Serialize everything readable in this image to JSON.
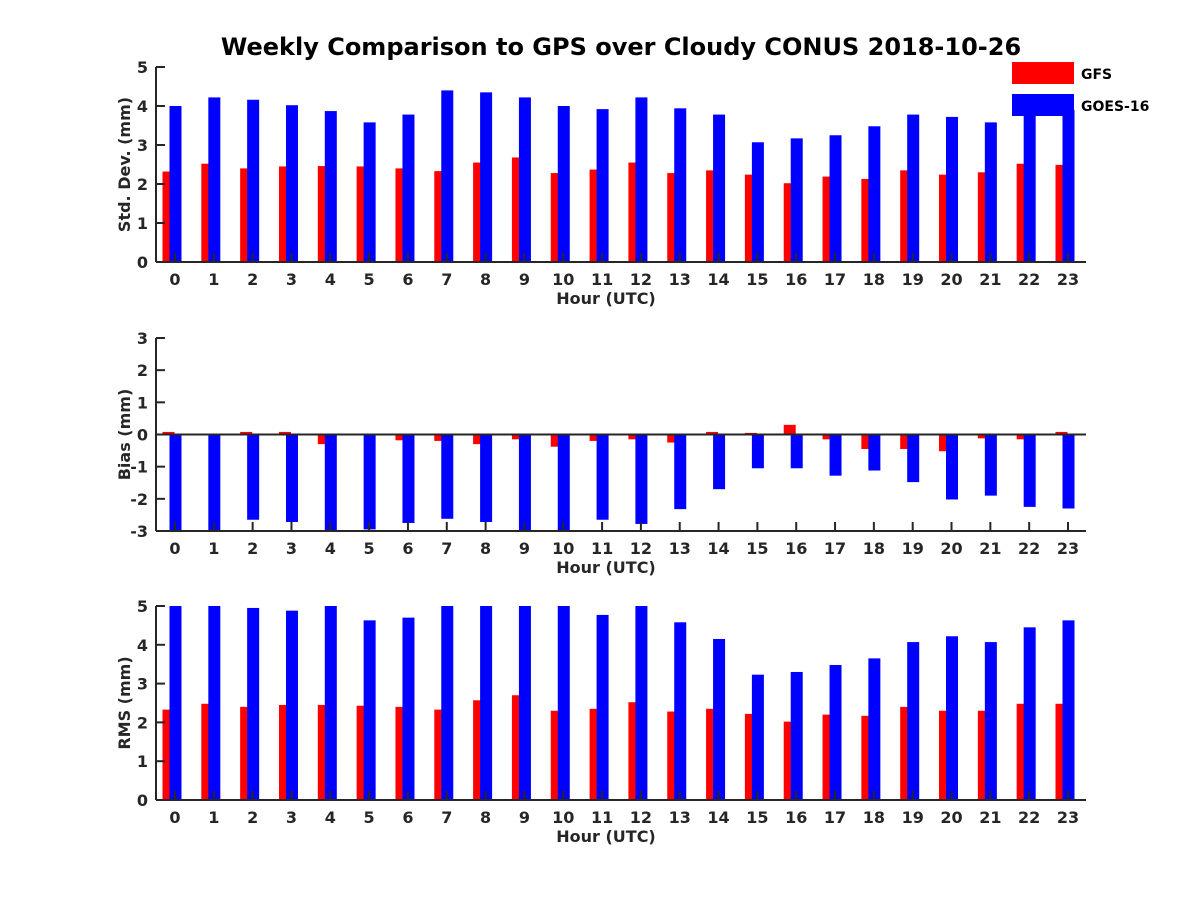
{
  "title": "Weekly Comparison to GPS over Cloudy CONUS 2018-10-26",
  "colors": {
    "GFS": "#ff0000",
    "GOES-16": "#0000ff",
    "axis": "#262626"
  },
  "legend": {
    "position": "top-right",
    "entries": [
      "GFS",
      "GOES-16"
    ]
  },
  "chart_data": [
    {
      "type": "bar",
      "ylabel": "Std. Dev. (mm)",
      "xlabel": "Hour (UTC)",
      "ylim": [
        0,
        5
      ],
      "yticks": [
        0,
        1,
        2,
        3,
        4,
        5
      ],
      "categories": [
        "0",
        "1",
        "2",
        "3",
        "4",
        "5",
        "6",
        "7",
        "8",
        "9",
        "10",
        "11",
        "12",
        "13",
        "14",
        "15",
        "16",
        "17",
        "18",
        "19",
        "20",
        "21",
        "22",
        "23"
      ],
      "series": [
        {
          "name": "GFS",
          "values": [
            2.32,
            2.52,
            2.4,
            2.45,
            2.46,
            2.45,
            2.4,
            2.33,
            2.55,
            2.68,
            2.28,
            2.37,
            2.55,
            2.28,
            2.35,
            2.24,
            2.02,
            2.19,
            2.13,
            2.35,
            2.24,
            2.3,
            2.52,
            2.49
          ]
        },
        {
          "name": "GOES-16",
          "values": [
            4.0,
            4.22,
            4.16,
            4.02,
            3.87,
            3.58,
            3.78,
            4.4,
            4.35,
            4.22,
            4.0,
            3.92,
            4.22,
            3.94,
            3.78,
            3.07,
            3.17,
            3.25,
            3.48,
            3.78,
            3.72,
            3.58,
            3.85,
            3.9
          ]
        }
      ]
    },
    {
      "type": "bar",
      "ylabel": "Bias (mm)",
      "xlabel": "Hour (UTC)",
      "ylim": [
        -3,
        3
      ],
      "yticks": [
        -3,
        -2,
        -1,
        0,
        1,
        2,
        3
      ],
      "zero_line": true,
      "categories": [
        "0",
        "1",
        "2",
        "3",
        "4",
        "5",
        "6",
        "7",
        "8",
        "9",
        "10",
        "11",
        "12",
        "13",
        "14",
        "15",
        "16",
        "17",
        "18",
        "19",
        "20",
        "21",
        "22",
        "23"
      ],
      "series": [
        {
          "name": "GFS",
          "values": [
            0.08,
            0.0,
            0.08,
            0.08,
            -0.3,
            0.02,
            -0.18,
            -0.2,
            -0.3,
            -0.15,
            -0.38,
            -0.2,
            -0.15,
            -0.25,
            0.08,
            0.05,
            0.3,
            -0.15,
            -0.45,
            -0.45,
            -0.52,
            -0.12,
            -0.15,
            0.08
          ]
        },
        {
          "name": "GOES-16",
          "values": [
            -3.0,
            -3.0,
            -2.65,
            -2.72,
            -3.0,
            -2.95,
            -2.75,
            -2.62,
            -2.72,
            -3.0,
            -3.0,
            -2.65,
            -2.78,
            -2.32,
            -1.7,
            -1.05,
            -1.05,
            -1.28,
            -1.12,
            -1.48,
            -2.02,
            -1.9,
            -2.25,
            -2.3
          ]
        }
      ]
    },
    {
      "type": "bar",
      "ylabel": "RMS (mm)",
      "xlabel": "Hour (UTC)",
      "ylim": [
        0,
        5
      ],
      "yticks": [
        0,
        1,
        2,
        3,
        4,
        5
      ],
      "categories": [
        "0",
        "1",
        "2",
        "3",
        "4",
        "5",
        "6",
        "7",
        "8",
        "9",
        "10",
        "11",
        "12",
        "13",
        "14",
        "15",
        "16",
        "17",
        "18",
        "19",
        "20",
        "21",
        "22",
        "23"
      ],
      "series": [
        {
          "name": "GFS",
          "values": [
            2.33,
            2.48,
            2.4,
            2.45,
            2.45,
            2.43,
            2.4,
            2.33,
            2.57,
            2.7,
            2.3,
            2.35,
            2.52,
            2.28,
            2.35,
            2.22,
            2.02,
            2.2,
            2.17,
            2.4,
            2.3,
            2.3,
            2.48,
            2.48
          ]
        },
        {
          "name": "GOES-16",
          "values": [
            5.0,
            5.0,
            4.95,
            4.88,
            5.0,
            4.63,
            4.7,
            5.0,
            5.0,
            5.0,
            5.0,
            4.77,
            5.0,
            4.58,
            4.15,
            3.23,
            3.3,
            3.48,
            3.65,
            4.07,
            4.22,
            4.07,
            4.45,
            4.63
          ]
        }
      ]
    }
  ]
}
